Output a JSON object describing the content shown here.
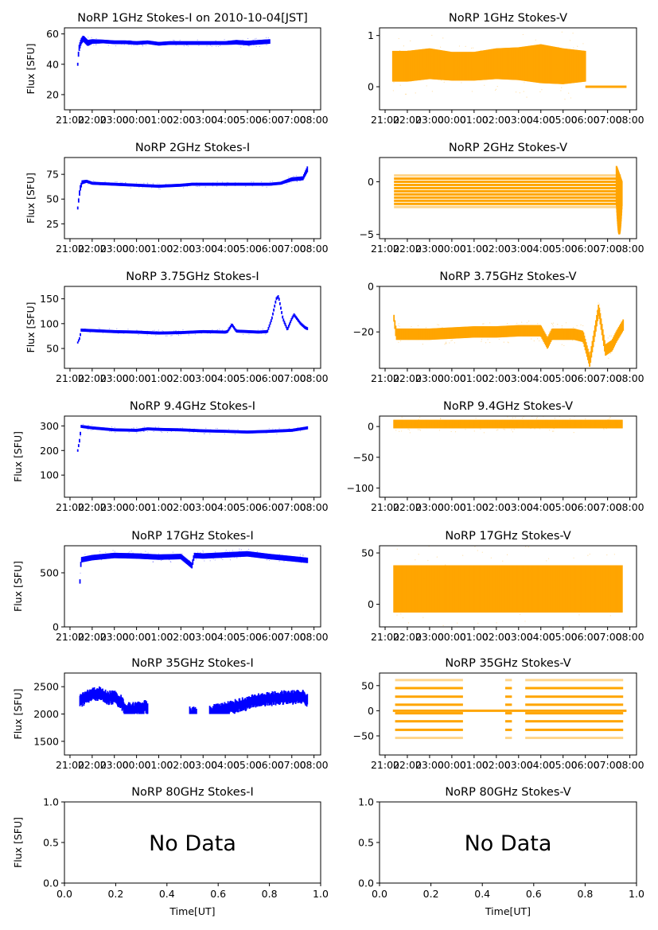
{
  "figure": {
    "ylabel": "Flux [SFU]",
    "xlabel": "Time[UT]",
    "no_data_text": "No Data"
  },
  "chart_data": [
    {
      "type": "scatter",
      "id": "1ghz-i",
      "title": "NoRP 1GHz Stokes-I on 2010-10-04[JST]",
      "ylabel": "Flux [SFU]",
      "xlabel": "",
      "color": "#0000ff",
      "xticks": [
        "21:00",
        "22:00",
        "23:00",
        "00:00",
        "01:00",
        "02:00",
        "03:00",
        "04:00",
        "05:00",
        "06:00",
        "07:00",
        "08:00"
      ],
      "xlim_hours": [
        20.75,
        32.3
      ],
      "ylim": [
        10,
        64
      ],
      "yticks": [
        20,
        40,
        60
      ],
      "series": [
        {
          "name": "Stokes-I",
          "x_hours": [
            21.35,
            21.4,
            21.5,
            21.6,
            21.8,
            22.0,
            22.5,
            23.0,
            23.5,
            24.0,
            24.5,
            25.0,
            25.5,
            26.0,
            26.5,
            27.0,
            27.5,
            28.0,
            28.5,
            29.0,
            29.5,
            30.0
          ],
          "y": [
            40,
            50,
            55,
            57,
            54,
            55,
            55,
            54.5,
            54.5,
            54,
            54.5,
            53.5,
            54,
            54,
            54,
            54,
            54,
            54,
            54.5,
            54,
            54.5,
            55
          ],
          "spread": [
            1,
            2,
            2,
            2,
            2,
            1.5,
            1.2,
            1.2,
            1.2,
            1.2,
            1.2,
            1.2,
            1.2,
            1.2,
            1.2,
            1.2,
            1.2,
            1.2,
            1.5,
            1.5,
            1.5,
            1.5
          ]
        }
      ]
    },
    {
      "type": "scatter",
      "id": "1ghz-v",
      "title": "NoRP 1GHz Stokes-V",
      "ylabel": "",
      "xlabel": "",
      "color": "#ffa500",
      "xticks": [
        "21:00",
        "22:00",
        "23:00",
        "00:00",
        "01:00",
        "02:00",
        "03:00",
        "04:00",
        "05:00",
        "06:00",
        "07:00",
        "08:00"
      ],
      "xlim_hours": [
        20.75,
        32.3
      ],
      "ylim": [
        -0.45,
        1.15
      ],
      "yticks": [
        0,
        1
      ],
      "series": [
        {
          "name": "Stokes-V",
          "x_hours": [
            21.35,
            22,
            23,
            24,
            25,
            26,
            27,
            28,
            29,
            30
          ],
          "y": [
            0.4,
            0.4,
            0.45,
            0.4,
            0.4,
            0.45,
            0.45,
            0.45,
            0.4,
            0.4
          ],
          "spread": [
            0.3,
            0.3,
            0.3,
            0.28,
            0.28,
            0.3,
            0.32,
            0.38,
            0.35,
            0.3
          ]
        },
        {
          "name": "zero-line",
          "x_range_hours": [
            30.0,
            31.85
          ],
          "y": 0
        }
      ]
    },
    {
      "type": "scatter",
      "id": "2ghz-i",
      "title": "NoRP 2GHz Stokes-I",
      "ylabel": "Flux [SFU]",
      "xlabel": "",
      "color": "#0000ff",
      "xticks": [
        "21:00",
        "22:00",
        "23:00",
        "00:00",
        "01:00",
        "02:00",
        "03:00",
        "04:00",
        "05:00",
        "06:00",
        "07:00",
        "08:00"
      ],
      "xlim_hours": [
        20.75,
        32.3
      ],
      "ylim": [
        10,
        92
      ],
      "yticks": [
        25,
        50,
        75
      ],
      "series": [
        {
          "name": "Stokes-I",
          "x_hours": [
            21.35,
            21.45,
            21.55,
            21.75,
            22.0,
            23.0,
            24.0,
            25.0,
            26.0,
            26.5,
            27.0,
            28.0,
            29.0,
            30.0,
            30.5,
            31.0,
            31.5,
            31.7
          ],
          "y": [
            41,
            60,
            67,
            68,
            66,
            65,
            64,
            63,
            64,
            65,
            65,
            65,
            65,
            65,
            66,
            70,
            71,
            80
          ],
          "spread": [
            1.5,
            3,
            2,
            1.5,
            1.5,
            1.5,
            1.5,
            1.5,
            1.5,
            1.5,
            1.5,
            1.5,
            1.5,
            1.5,
            1.5,
            2,
            2,
            3
          ]
        }
      ]
    },
    {
      "type": "scatter",
      "id": "2ghz-v",
      "title": "NoRP 2GHz Stokes-V",
      "ylabel": "",
      "xlabel": "",
      "color": "#ffa500",
      "xticks": [
        "21:00",
        "22:00",
        "23:00",
        "00:00",
        "01:00",
        "02:00",
        "03:00",
        "04:00",
        "05:00",
        "06:00",
        "07:00",
        "08:00"
      ],
      "xlim_hours": [
        20.75,
        32.3
      ],
      "ylim": [
        -5.4,
        2.3
      ],
      "yticks": [
        -5,
        0
      ],
      "series": [
        {
          "name": "Stokes-V",
          "levels": [
            0.6,
            0.3,
            0,
            -0.3,
            -0.6,
            -0.9,
            -1.2,
            -1.5,
            -1.8,
            -2.1,
            -2.4
          ],
          "x_range_hours": [
            21.4,
            31.6
          ]
        }
      ]
    },
    {
      "type": "scatter",
      "id": "3.75ghz-i",
      "title": "NoRP 3.75GHz Stokes-I",
      "ylabel": "Flux [SFU]",
      "xlabel": "",
      "color": "#0000ff",
      "xticks": [
        "21:00",
        "22:00",
        "23:00",
        "00:00",
        "01:00",
        "02:00",
        "03:00",
        "04:00",
        "05:00",
        "06:00",
        "07:00",
        "08:00"
      ],
      "xlim_hours": [
        20.75,
        32.3
      ],
      "ylim": [
        10,
        175
      ],
      "yticks": [
        50,
        100,
        150
      ],
      "series": [
        {
          "name": "Stokes-I",
          "x_hours": [
            21.35,
            21.45,
            21.5,
            22,
            23,
            24,
            25,
            26,
            27,
            28,
            28.1,
            28.3,
            28.5,
            29,
            29.5,
            29.9,
            30.1,
            30.3,
            30.4,
            30.6,
            30.8,
            31.0,
            31.1,
            31.4,
            31.6,
            31.7
          ],
          "y": [
            62,
            72,
            87,
            86,
            84,
            83,
            81,
            82,
            84,
            83,
            84,
            98,
            85,
            84,
            83,
            84,
            110,
            150,
            155,
            110,
            88,
            110,
            118,
            100,
            92,
            90
          ],
          "spread": [
            2,
            3,
            3,
            3,
            3,
            3,
            3,
            3,
            3,
            3,
            3,
            3,
            3,
            3,
            3,
            3,
            3,
            3,
            3,
            3,
            3,
            3,
            3,
            3,
            3,
            3
          ]
        }
      ]
    },
    {
      "type": "scatter",
      "id": "3.75ghz-v",
      "title": "NoRP 3.75GHz Stokes-V",
      "ylabel": "",
      "xlabel": "",
      "color": "#ffa500",
      "xticks": [
        "21:00",
        "22:00",
        "23:00",
        "00:00",
        "01:00",
        "02:00",
        "03:00",
        "04:00",
        "05:00",
        "06:00",
        "07:00",
        "08:00"
      ],
      "xlim_hours": [
        20.75,
        32.3
      ],
      "ylim": [
        -36,
        0
      ],
      "yticks": [
        -20,
        0
      ],
      "series": [
        {
          "name": "Stokes-V",
          "x_hours": [
            21.4,
            21.5,
            22,
            23,
            24,
            25,
            26,
            27,
            28,
            28.3,
            28.5,
            29,
            29.5,
            29.9,
            30.2,
            30.6,
            30.9,
            31.2,
            31.4,
            31.7
          ],
          "y": [
            -14,
            -21,
            -21,
            -21,
            -20.5,
            -20,
            -20,
            -19.5,
            -19.5,
            -25,
            -21,
            -21,
            -21,
            -22,
            -33,
            -10,
            -28,
            -26,
            -22,
            -17
          ],
          "spread": [
            1.5,
            2.5,
            2.5,
            2.5,
            2.5,
            2.5,
            2.5,
            2.5,
            2.5,
            2.5,
            2.5,
            2.5,
            2.5,
            2.5,
            2.5,
            2.5,
            2.5,
            2.5,
            2.5,
            2.5
          ]
        }
      ]
    },
    {
      "type": "scatter",
      "id": "9.4ghz-i",
      "title": "NoRP 9.4GHz Stokes-I",
      "ylabel": "Flux [SFU]",
      "xlabel": "",
      "color": "#0000ff",
      "xticks": [
        "21:00",
        "22:00",
        "23:00",
        "00:00",
        "01:00",
        "02:00",
        "03:00",
        "04:00",
        "05:00",
        "06:00",
        "07:00",
        "08:00"
      ],
      "xlim_hours": [
        20.75,
        32.3
      ],
      "ylim": [
        10,
        340
      ],
      "yticks": [
        100,
        200,
        300
      ],
      "series": [
        {
          "name": "Stokes-I",
          "x_hours": [
            21.35,
            21.45,
            21.5,
            22,
            23,
            24,
            24.5,
            25,
            26,
            27,
            28,
            29,
            30,
            31,
            31.7
          ],
          "y": [
            200,
            250,
            298,
            292,
            284,
            282,
            288,
            286,
            284,
            280,
            278,
            275,
            278,
            282,
            292
          ],
          "spread": [
            5,
            8,
            6,
            6,
            6,
            6,
            6,
            6,
            6,
            6,
            6,
            6,
            6,
            6,
            6
          ]
        }
      ]
    },
    {
      "type": "scatter",
      "id": "9.4ghz-v",
      "title": "NoRP 9.4GHz Stokes-V",
      "ylabel": "",
      "xlabel": "",
      "color": "#ffa500",
      "xticks": [
        "21:00",
        "22:00",
        "23:00",
        "00:00",
        "01:00",
        "02:00",
        "03:00",
        "04:00",
        "05:00",
        "06:00",
        "07:00",
        "08:00"
      ],
      "xlim_hours": [
        20.75,
        32.3
      ],
      "ylim": [
        -115,
        17
      ],
      "yticks": [
        -100,
        -50,
        0
      ],
      "series": [
        {
          "name": "Stokes-V",
          "x_hours": [
            21.4,
            31.65
          ],
          "y": [
            4,
            4
          ],
          "spread": [
            7,
            7
          ]
        }
      ]
    },
    {
      "type": "scatter",
      "id": "17ghz-i",
      "title": "NoRP 17GHz Stokes-I",
      "ylabel": "Flux [SFU]",
      "xlabel": "",
      "color": "#0000ff",
      "xticks": [
        "21:00",
        "22:00",
        "23:00",
        "00:00",
        "01:00",
        "02:00",
        "03:00",
        "04:00",
        "05:00",
        "06:00",
        "07:00",
        "08:00"
      ],
      "xlim_hours": [
        20.75,
        32.3
      ],
      "ylim": [
        0,
        750
      ],
      "yticks": [
        0,
        500
      ],
      "series": [
        {
          "name": "Stokes-I",
          "x_hours": [
            21.45,
            21.5,
            22,
            23,
            24,
            25,
            26,
            26.5,
            26.6,
            27,
            28,
            29,
            30,
            31,
            31.7
          ],
          "y": [
            420,
            620,
            640,
            660,
            655,
            645,
            650,
            565,
            660,
            655,
            665,
            675,
            650,
            630,
            615
          ],
          "spread": [
            20,
            25,
            25,
            25,
            25,
            25,
            25,
            25,
            25,
            25,
            25,
            25,
            25,
            25,
            25
          ]
        }
      ]
    },
    {
      "type": "scatter",
      "id": "17ghz-v",
      "title": "NoRP 17GHz Stokes-V",
      "ylabel": "",
      "xlabel": "",
      "color": "#ffa500",
      "xticks": [
        "21:00",
        "22:00",
        "23:00",
        "00:00",
        "01:00",
        "02:00",
        "03:00",
        "04:00",
        "05:00",
        "06:00",
        "07:00",
        "08:00"
      ],
      "xlim_hours": [
        20.75,
        32.3
      ],
      "ylim": [
        -22,
        57
      ],
      "yticks": [
        0,
        50
      ],
      "series": [
        {
          "name": "Stokes-V",
          "x_hours": [
            21.4,
            31.65
          ],
          "y": [
            15,
            15
          ],
          "spread": [
            23,
            23
          ]
        }
      ]
    },
    {
      "type": "scatter",
      "id": "35ghz-i",
      "title": "NoRP 35GHz Stokes-I",
      "ylabel": "Flux [SFU]",
      "xlabel": "",
      "color": "#0000ff",
      "xticks": [
        "21:00",
        "22:00",
        "23:00",
        "00:00",
        "01:00",
        "02:00",
        "03:00",
        "04:00",
        "05:00",
        "06:00",
        "07:00",
        "08:00"
      ],
      "xlim_hours": [
        20.75,
        32.3
      ],
      "ylim": [
        1250,
        2750
      ],
      "yticks": [
        1500,
        2000,
        2500
      ],
      "series": [
        {
          "name": "Stokes-I",
          "segments": [
            {
              "x_hours": [
                21.45,
                21.6,
                22,
                22.3,
                22.7,
                23,
                23.3,
                23.5,
                24,
                24.4,
                24.5
              ],
              "y": [
                2250,
                2300,
                2380,
                2400,
                2320,
                2330,
                2250,
                2100,
                2120,
                2150,
                2100
              ]
            },
            {
              "x_hours": [
                26.4,
                26.7
              ],
              "y": [
                2030,
                2030
              ]
            },
            {
              "x_hours": [
                27.3,
                27.8,
                28.5,
                29,
                29.5,
                30,
                30.5,
                31,
                31.5,
                31.7
              ],
              "y": [
                2050,
                2100,
                2170,
                2220,
                2280,
                2300,
                2320,
                2330,
                2340,
                2280
              ]
            }
          ],
          "spread": 120
        }
      ]
    },
    {
      "type": "scatter",
      "id": "35ghz-v",
      "title": "NoRP 35GHz Stokes-V",
      "ylabel": "",
      "xlabel": "",
      "color": "#ffa500",
      "xticks": [
        "21:00",
        "22:00",
        "23:00",
        "00:00",
        "01:00",
        "02:00",
        "03:00",
        "04:00",
        "05:00",
        "06:00",
        "07:00",
        "08:00"
      ],
      "xlim_hours": [
        20.75,
        32.3
      ],
      "ylim": [
        -88,
        75
      ],
      "yticks": [
        -50,
        0,
        50
      ],
      "series": [
        {
          "name": "Stokes-V",
          "levels": [
            61,
            45,
            28,
            12,
            -5,
            -21,
            -38,
            -54
          ],
          "x_ranges_hours": [
            [
              21.45,
              24.5
            ],
            [
              26.4,
              26.7
            ],
            [
              27.3,
              31.7
            ]
          ]
        },
        {
          "name": "zero-line",
          "x_range_hours": [
            21.35,
            31.85
          ],
          "y": 0
        }
      ]
    },
    {
      "type": "scatter",
      "id": "80ghz-i",
      "title": "NoRP 80GHz Stokes-I",
      "ylabel": "Flux [SFU]",
      "xlabel": "Time[UT]",
      "no_data": true,
      "xticks": [
        "0.0",
        "0.2",
        "0.4",
        "0.6",
        "0.8",
        "1.0"
      ],
      "yticks": [
        "0.0",
        "0.5",
        "1.0"
      ],
      "xlim": [
        0,
        1
      ],
      "ylim": [
        0,
        1
      ]
    },
    {
      "type": "scatter",
      "id": "80ghz-v",
      "title": "NoRP 80GHz Stokes-V",
      "ylabel": "",
      "xlabel": "Time[UT]",
      "no_data": true,
      "xticks": [
        "0.0",
        "0.2",
        "0.4",
        "0.6",
        "0.8",
        "1.0"
      ],
      "yticks": [
        "0.0",
        "0.5",
        "1.0"
      ],
      "xlim": [
        0,
        1
      ],
      "ylim": [
        0,
        1
      ]
    }
  ]
}
